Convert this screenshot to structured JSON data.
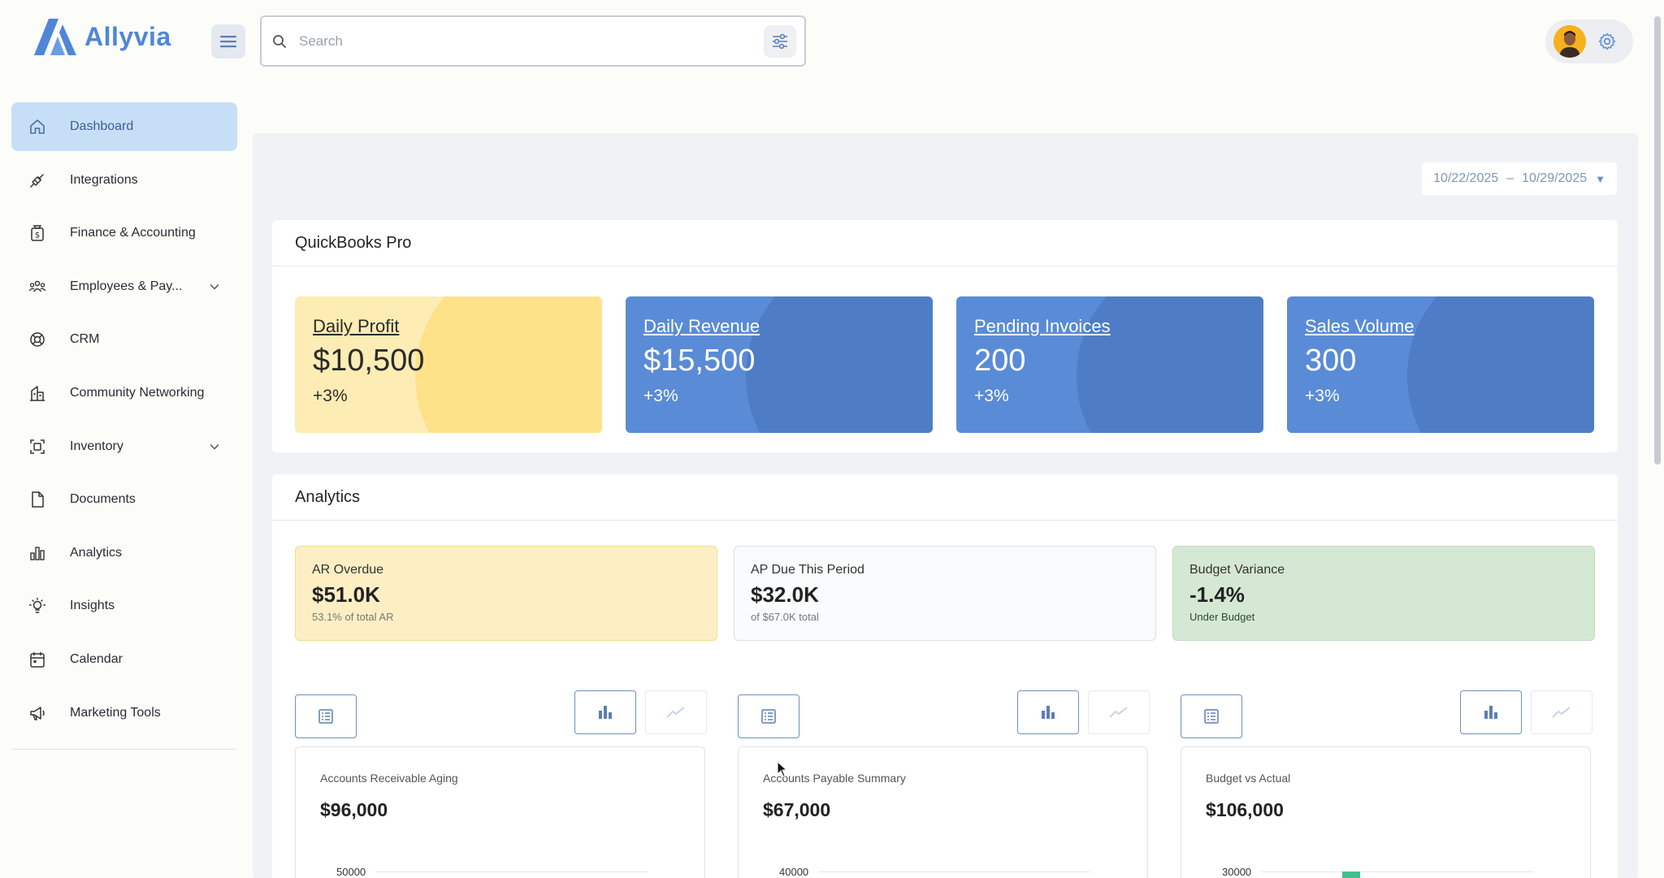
{
  "app": {
    "brand": "Allyvia",
    "brand_color": "#4f86d8"
  },
  "search": {
    "placeholder": "Search",
    "value": ""
  },
  "sidebar": {
    "items": [
      {
        "label": "Dashboard",
        "icon": "home-icon",
        "active": true
      },
      {
        "label": "Integrations",
        "icon": "plug-icon"
      },
      {
        "label": "Finance & Accounting",
        "icon": "money-bag-icon"
      },
      {
        "label": "Employees & Pay...",
        "icon": "people-icon",
        "expandable": true
      },
      {
        "label": "CRM",
        "icon": "lifebuoy-icon"
      },
      {
        "label": "Community Networking",
        "icon": "building-icon"
      },
      {
        "label": "Inventory",
        "icon": "scan-box-icon",
        "expandable": true
      },
      {
        "label": "Documents",
        "icon": "document-icon"
      },
      {
        "label": "Analytics",
        "icon": "bar-chart-icon"
      },
      {
        "label": "Insights",
        "icon": "lightbulb-icon"
      },
      {
        "label": "Calendar",
        "icon": "calendar-icon"
      },
      {
        "label": "Marketing Tools",
        "icon": "megaphone-icon"
      }
    ]
  },
  "date_range": {
    "start": "10/22/2025",
    "separator": "–",
    "end": "10/29/2025"
  },
  "quickbooks": {
    "title": "QuickBooks Pro",
    "kpis": [
      {
        "title": "Daily Profit",
        "value": "$10,500",
        "change": "+3%",
        "color": "#fdecb3"
      },
      {
        "title": "Daily Revenue",
        "value": "$15,500",
        "change": "+3%",
        "color": "#5a8bd6"
      },
      {
        "title": "Pending Invoices",
        "value": "200",
        "change": "+3%",
        "color": "#5a8bd6"
      },
      {
        "title": "Sales Volume",
        "value": "300",
        "change": "+3%",
        "color": "#5a8bd6"
      }
    ]
  },
  "analytics": {
    "title": "Analytics",
    "metrics": [
      {
        "label": "AR Overdue",
        "value": "$51.0K",
        "sub": "53.1% of total AR"
      },
      {
        "label": "AP Due This Period",
        "value": "$32.0K",
        "sub": "of $67.0K total"
      },
      {
        "label": "Budget Variance",
        "value": "-1.4%",
        "sub": "Under Budget"
      }
    ],
    "charts": [
      {
        "title": "Accounts Receivable Aging",
        "value": "$96,000",
        "top_tick": "50000"
      },
      {
        "title": "Accounts Payable Summary",
        "value": "$67,000",
        "top_tick": "40000"
      },
      {
        "title": "Budget vs Actual",
        "value": "$106,000",
        "top_tick": "30000"
      }
    ]
  }
}
